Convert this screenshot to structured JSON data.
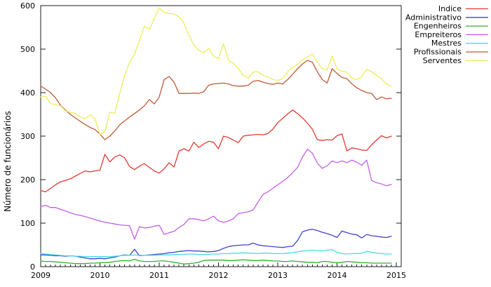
{
  "chart_data": {
    "type": "line",
    "title": "",
    "ylabel": "Número de funcionários",
    "xlabel": "",
    "x_ticks": [
      "2009",
      "2010",
      "2011",
      "2012",
      "2013",
      "2014",
      "2015"
    ],
    "y_ticks": [
      "0",
      "100",
      "200",
      "300",
      "400",
      "500",
      "600"
    ],
    "ylim": [
      0,
      600
    ],
    "xlim": [
      2009,
      2015
    ],
    "x_unit": "months",
    "points_start": "2009-01",
    "points_per_year": 12,
    "grid": false,
    "legend_position": "outside-top-right",
    "series": [
      {
        "name": "Indice",
        "color": "#e23b32",
        "values": [
          175,
          172,
          180,
          188,
          195,
          198,
          202,
          208,
          214,
          220,
          218,
          220,
          222,
          258,
          241,
          252,
          257,
          250,
          230,
          223,
          231,
          237,
          228,
          220,
          215,
          225,
          239,
          229,
          266,
          271,
          266,
          286,
          274,
          282,
          288,
          286,
          271,
          300,
          297,
          291,
          285,
          300,
          302,
          303,
          304,
          303,
          306,
          316,
          331,
          341,
          351,
          360,
          352,
          342,
          330,
          316,
          292,
          290,
          292,
          291,
          301,
          305,
          266,
          273,
          271,
          268,
          267,
          280,
          291,
          301,
          296,
          300
        ]
      },
      {
        "name": "Administrativo",
        "color": "#4343cf",
        "values": [
          27,
          27,
          26,
          25,
          25,
          24,
          25,
          24,
          22,
          20,
          18,
          18,
          19,
          18,
          20,
          22,
          25,
          27,
          26,
          40,
          25,
          26,
          27,
          28,
          29,
          30,
          32,
          33,
          35,
          36,
          37,
          36,
          36,
          35,
          34,
          35,
          37,
          42,
          46,
          48,
          49,
          50,
          50,
          54,
          50,
          48,
          47,
          46,
          45,
          44,
          46,
          47,
          60,
          80,
          84,
          86,
          83,
          79,
          76,
          72,
          67,
          82,
          78,
          75,
          73,
          66,
          74,
          71,
          70,
          68,
          67,
          70
        ]
      },
      {
        "name": "Engenheiros",
        "color": "#2db32d",
        "values": [
          13,
          12,
          12,
          11,
          10,
          9,
          8,
          7,
          7,
          7,
          8,
          8,
          9,
          9,
          10,
          12,
          13,
          14,
          13,
          17,
          13,
          12,
          12,
          12,
          13,
          13,
          12,
          10,
          8,
          6,
          7,
          8,
          10,
          14,
          15,
          15,
          15,
          15,
          14,
          14,
          15,
          16,
          15,
          14,
          14,
          15,
          14,
          13,
          13,
          12,
          12,
          13,
          12,
          11,
          10,
          10,
          9,
          12,
          12,
          10,
          9,
          10,
          12,
          11,
          10,
          9,
          9,
          8,
          8,
          8,
          8,
          8
        ]
      },
      {
        "name": "Empreiteros",
        "color": "#c45fe6",
        "values": [
          138,
          141,
          136,
          136,
          132,
          128,
          124,
          120,
          118,
          115,
          112,
          108,
          105,
          102,
          100,
          98,
          96,
          95,
          94,
          63,
          92,
          89,
          90,
          93,
          95,
          74,
          78,
          81,
          90,
          97,
          110,
          110,
          108,
          105,
          110,
          116,
          105,
          102,
          105,
          110,
          122,
          124,
          126,
          130,
          148,
          166,
          172,
          180,
          188,
          196,
          205,
          216,
          228,
          252,
          270,
          261,
          238,
          226,
          232,
          243,
          239,
          243,
          239,
          245,
          240,
          233,
          245,
          198,
          193,
          190,
          186,
          189
        ]
      },
      {
        "name": "Mestres",
        "color": "#46dde2",
        "values": [
          30,
          29,
          28,
          27,
          26,
          25,
          25,
          24,
          24,
          23,
          23,
          23,
          23,
          23,
          23,
          24,
          25,
          26,
          26,
          27,
          26,
          26,
          26,
          26,
          27,
          27,
          27,
          28,
          28,
          28,
          29,
          29,
          28,
          28,
          28,
          29,
          29,
          30,
          30,
          31,
          31,
          32,
          31,
          31,
          30,
          31,
          31,
          30,
          30,
          30,
          31,
          32,
          34,
          36,
          37,
          38,
          37,
          36,
          38,
          39,
          33,
          30,
          29,
          30,
          30,
          31,
          35,
          33,
          31,
          30,
          29,
          29
        ]
      },
      {
        "name": "Profissionais",
        "color": "#c05a38",
        "values": [
          415,
          408,
          400,
          388,
          371,
          360,
          350,
          342,
          334,
          327,
          320,
          315,
          305,
          292,
          300,
          312,
          326,
          335,
          344,
          352,
          360,
          370,
          384,
          374,
          390,
          430,
          437,
          424,
          398,
          398,
          398,
          399,
          398,
          402,
          417,
          420,
          421,
          422,
          420,
          416,
          415,
          415,
          417,
          426,
          428,
          424,
          421,
          419,
          422,
          420,
          430,
          442,
          455,
          466,
          474,
          470,
          448,
          430,
          422,
          455,
          444,
          435,
          432,
          420,
          411,
          405,
          400,
          398,
          384,
          390,
          386,
          387
        ]
      },
      {
        "name": "Serventes",
        "color": "#eded58",
        "values": [
          390,
          392,
          375,
          372,
          370,
          358,
          355,
          352,
          344,
          340,
          349,
          339,
          304,
          310,
          355,
          352,
          398,
          440,
          470,
          489,
          520,
          553,
          545,
          570,
          595,
          584,
          582,
          581,
          574,
          560,
          532,
          510,
          497,
          492,
          502,
          484,
          478,
          513,
          474,
          468,
          455,
          440,
          433,
          447,
          448,
          440,
          436,
          430,
          428,
          432,
          448,
          458,
          465,
          475,
          482,
          489,
          470,
          455,
          452,
          484,
          455,
          449,
          447,
          433,
          430,
          437,
          453,
          448,
          440,
          432,
          420,
          414
        ]
      }
    ]
  }
}
